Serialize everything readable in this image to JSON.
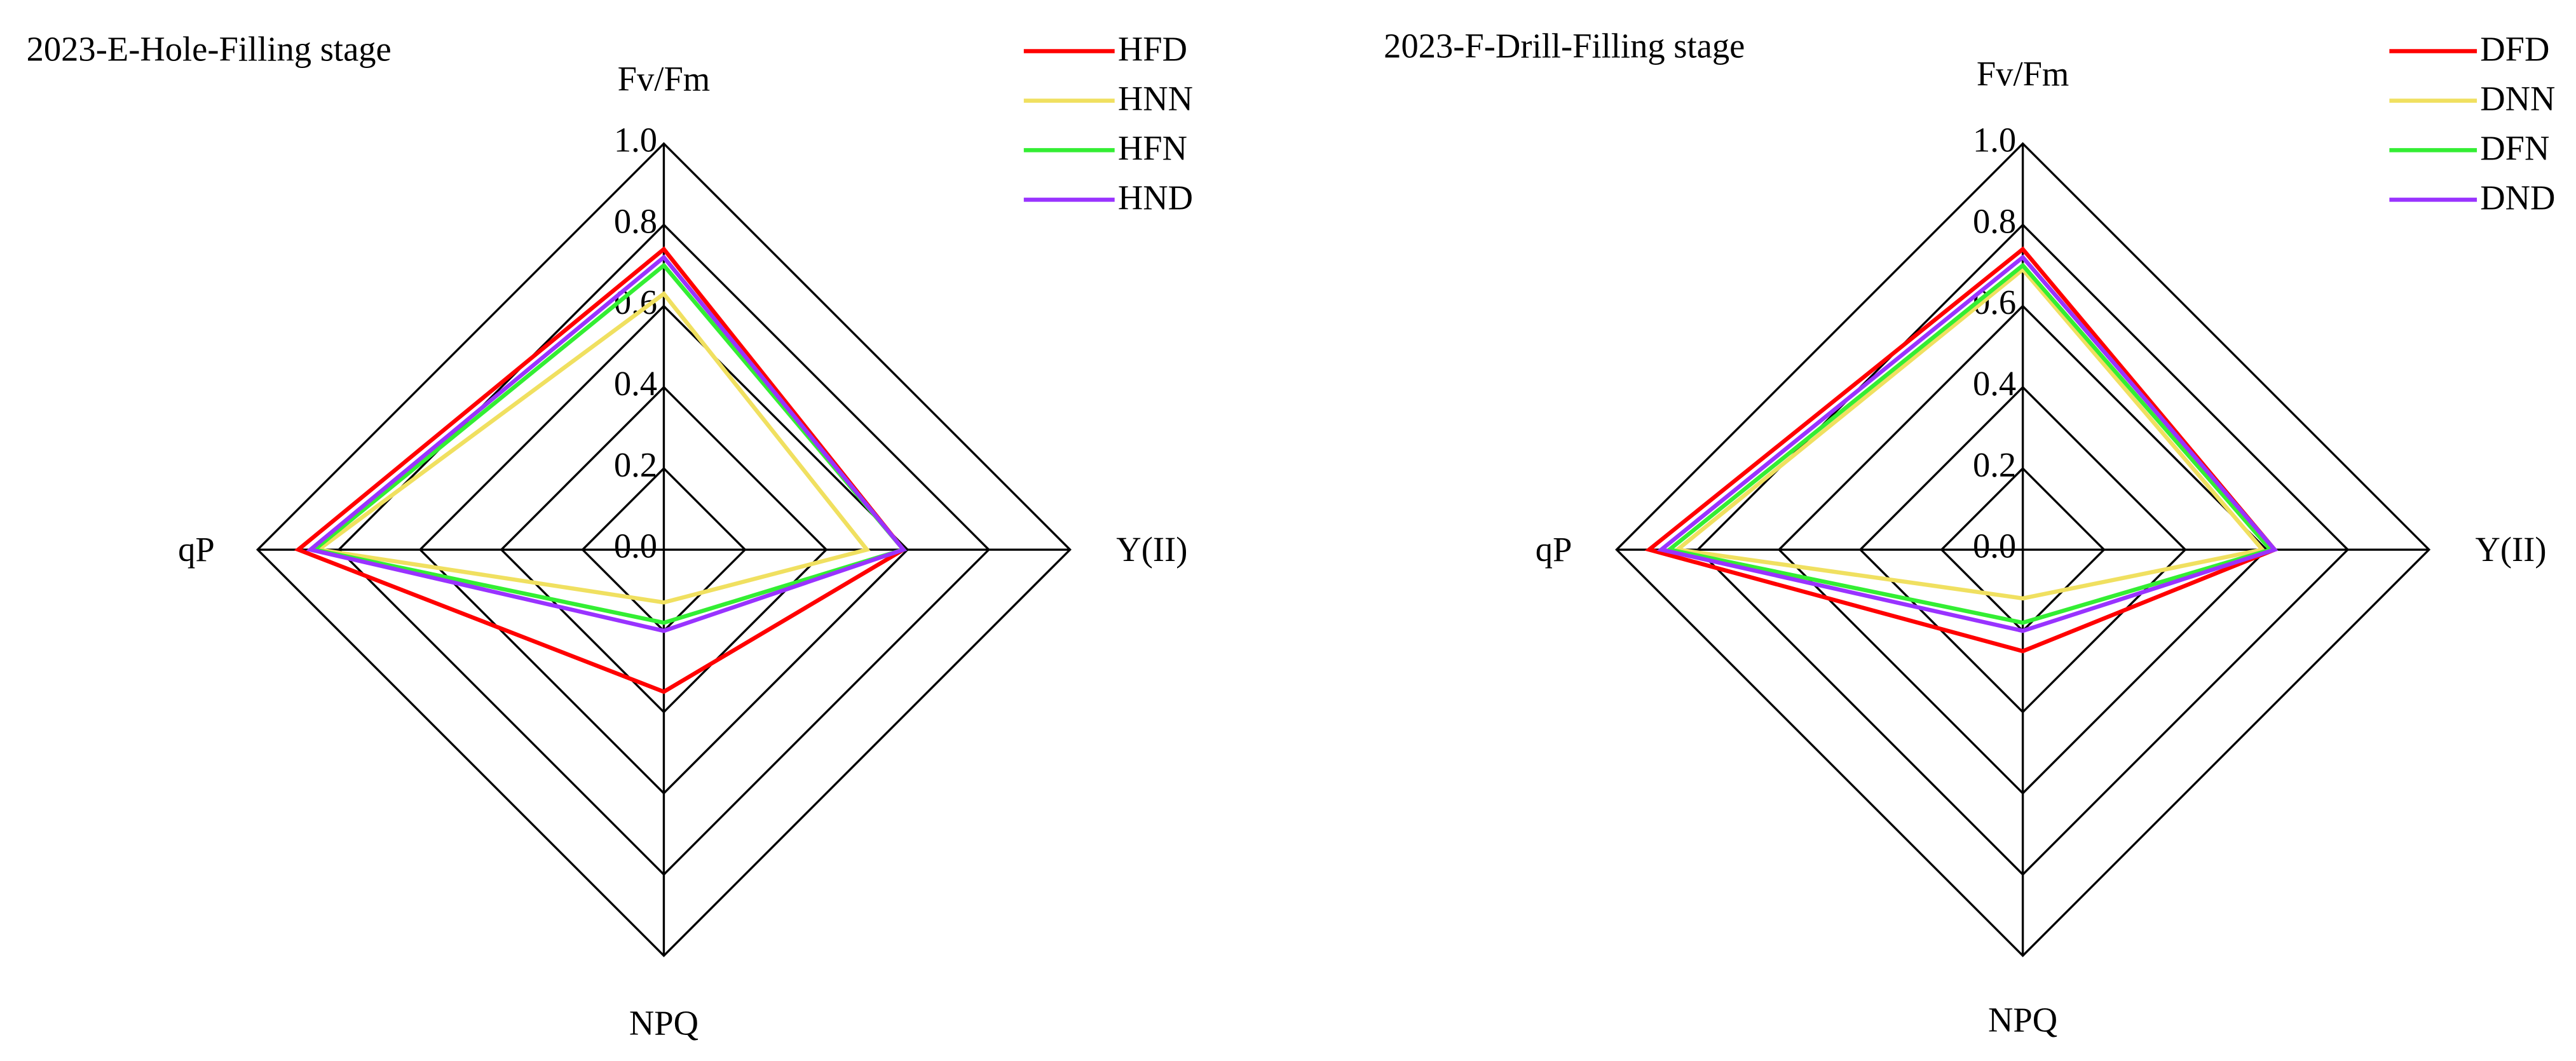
{
  "chart_data": [
    {
      "type": "radar",
      "title": "2023-E-Hole-Filling stage",
      "categories": [
        "Fv/Fm",
        "Y(II)",
        "NPQ",
        "qP"
      ],
      "rlim": [
        0,
        1
      ],
      "rticks": [
        {
          "value": 0,
          "label": "0.0"
        },
        0.2,
        0.4,
        0.6,
        0.8,
        {
          "value": 1,
          "label": "1.0"
        }
      ],
      "series": [
        {
          "name": "HFD",
          "color": "#ff0000",
          "values": [
            0.74,
            0.59,
            0.35,
            0.9
          ]
        },
        {
          "name": "HNN",
          "color": "#f0e060",
          "values": [
            0.63,
            0.5,
            0.13,
            0.85
          ]
        },
        {
          "name": "HFN",
          "color": "#33ee33",
          "values": [
            0.7,
            0.59,
            0.18,
            0.86
          ]
        },
        {
          "name": "HND",
          "color": "#9933ff",
          "values": [
            0.72,
            0.59,
            0.2,
            0.87
          ]
        }
      ]
    },
    {
      "type": "radar",
      "title": "2023-F-Drill-Filling stage",
      "categories": [
        "Fv/Fm",
        "Y(II)",
        "NPQ",
        "qP"
      ],
      "rlim": [
        0,
        1
      ],
      "rticks": [
        {
          "value": 0,
          "label": "0.0"
        },
        0.2,
        0.4,
        0.6,
        0.8,
        {
          "value": 1,
          "label": "1.0"
        }
      ],
      "series": [
        {
          "name": "DFD",
          "color": "#ff0000",
          "values": [
            0.74,
            0.62,
            0.25,
            0.92
          ]
        },
        {
          "name": "DNN",
          "color": "#f0e060",
          "values": [
            0.69,
            0.59,
            0.12,
            0.85
          ]
        },
        {
          "name": "DFN",
          "color": "#33ee33",
          "values": [
            0.7,
            0.61,
            0.18,
            0.87
          ]
        },
        {
          "name": "DND",
          "color": "#9933ff",
          "values": [
            0.72,
            0.62,
            0.2,
            0.89
          ]
        }
      ]
    }
  ]
}
